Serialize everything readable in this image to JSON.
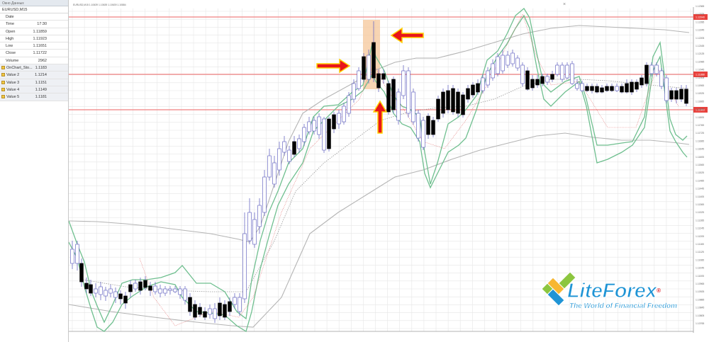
{
  "data_window": {
    "title": "Окно Данных",
    "symbol": "EURUSD,M15",
    "rows": [
      {
        "label": "Date",
        "value": "",
        "indicator": false
      },
      {
        "label": "Time",
        "value": "17:30",
        "indicator": false
      },
      {
        "label": "Open",
        "value": "1.11859",
        "indicator": false
      },
      {
        "label": "High",
        "value": "1.11923",
        "indicator": false
      },
      {
        "label": "Low",
        "value": "1.11651",
        "indicator": false
      },
      {
        "label": "Close",
        "value": "1.11722",
        "indicator": false
      },
      {
        "label": "Volume",
        "value": "2962",
        "indicator": false
      },
      {
        "label": "OnChart_Sto...",
        "value": "1.1183",
        "indicator": true
      },
      {
        "label": "Value 2",
        "value": "1.1214",
        "indicator": true
      },
      {
        "label": "Value 3",
        "value": "1.1151",
        "indicator": true
      },
      {
        "label": "Value 4",
        "value": "1.1149",
        "indicator": true
      },
      {
        "label": "Value 5",
        "value": "1.1181",
        "indicator": true
      }
    ]
  },
  "chart": {
    "header": "EURUSD,M15  1.10639 1.10639 1.10639 1.10884",
    "price_labels": [
      "1.12365",
      "1.12325",
      "1.12285",
      "1.12245",
      "1.12205",
      "1.12165",
      "1.12125",
      "1.12085",
      "1.12045",
      "1.12005",
      "1.11965",
      "1.11925",
      "1.11885",
      "1.11845",
      "1.11805",
      "1.11765",
      "1.11725",
      "1.11685",
      "1.11645",
      "1.11605",
      "1.11565",
      "1.11525",
      "1.11485",
      "1.11445",
      "1.11405",
      "1.11365",
      "1.11325",
      "1.11285",
      "1.11245",
      "1.11205",
      "1.11165",
      "1.11125",
      "1.11085",
      "1.11045",
      "1.11005",
      "1.10965",
      "1.10925",
      "1.10885",
      "1.10845",
      "1.10805",
      "1.10765"
    ],
    "level_tags": [
      "1.12040",
      "1.11888",
      "1.11603"
    ],
    "colors": {
      "bull_candle": "#ffffff",
      "bear_candle": "#000000",
      "candle_outline": "#6b6bc4",
      "bollinger": "#b4b4b4",
      "ma_dotted": "#999999",
      "stochastic_band": "#6fbf8f",
      "stochastic_signal": "#e26b6b",
      "level_line": "#f08080",
      "highlight": "#f5c79a",
      "arrow": "#e8161b",
      "arrow_outline": "#ffd200"
    }
  },
  "logo": {
    "brand_part1": "Lite",
    "brand_part2": "Forex",
    "registered": "®",
    "tagline": "The World of Financial Freedom"
  }
}
